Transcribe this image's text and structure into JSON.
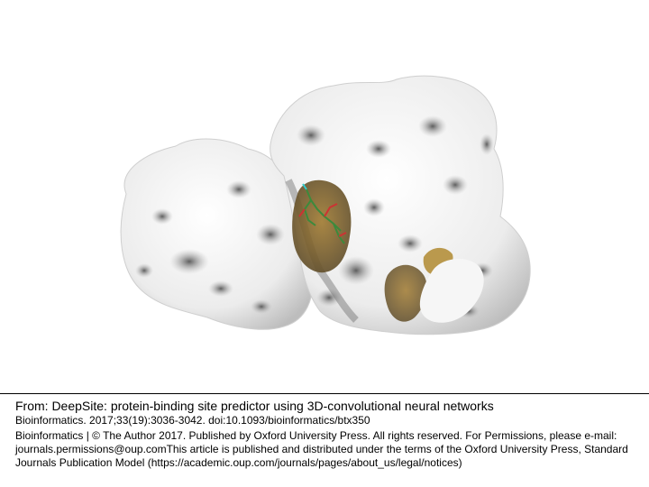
{
  "figure": {
    "description_icon": "protein-surface-image",
    "colors": {
      "surface": "#f2f2f2",
      "shadow": "#8a8a8a",
      "pocket": "#8c6a2c",
      "ligand_green": "#3c8a3c",
      "ligand_red": "#cc3333",
      "ligand_cyan": "#33cccc"
    }
  },
  "caption": {
    "title": "From: DeepSite: protein-binding site predictor using 3D-convolutional neural networks",
    "citation": "Bioinformatics. 2017;33(19):3036-3042. doi:10.1093/bioinformatics/btx350",
    "copyright_line1": "Bioinformatics | © The Author 2017. Published by Oxford University Press. All rights reserved. For Permissions, please e-mail:",
    "copyright_line2": "journals.permissions@oup.comThis article is published and distributed under the terms of the Oxford University Press, Standard",
    "copyright_line3": "Journals Publication Model (https://academic.oup.com/journals/pages/about_us/legal/notices)"
  }
}
